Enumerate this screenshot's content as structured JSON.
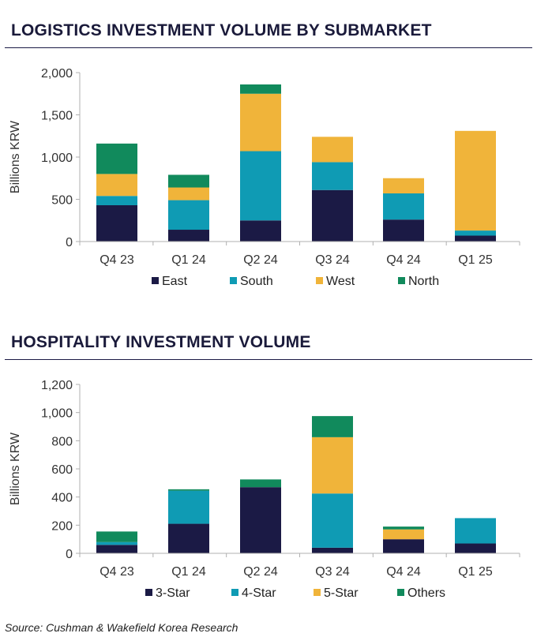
{
  "colors": {
    "title": "#1a1a3a",
    "rule": "#1b1a45",
    "axis": "#b0b0b0",
    "text": "#333333"
  },
  "chart_data": [
    {
      "type": "bar",
      "stacked": true,
      "title": "LOGISTICS INVESTMENT VOLUME BY SUBMARKET",
      "ylabel": "Billions KRW",
      "xlabel": "",
      "ylim": [
        0,
        2000
      ],
      "yticks": [
        "0",
        "500",
        "1,000",
        "1,500",
        "2,000"
      ],
      "grid": false,
      "legend_position": "bottom",
      "categories": [
        "Q4 23",
        "Q1 24",
        "Q2 24",
        "Q3 24",
        "Q4 24",
        "Q1 25"
      ],
      "series": [
        {
          "name": "East",
          "color": "#1b1a45",
          "values": [
            430,
            140,
            250,
            610,
            260,
            70
          ]
        },
        {
          "name": "South",
          "color": "#0f9bb4",
          "values": [
            110,
            350,
            820,
            330,
            310,
            60
          ]
        },
        {
          "name": "West",
          "color": "#f0b43a",
          "values": [
            260,
            150,
            680,
            300,
            180,
            1180
          ]
        },
        {
          "name": "North",
          "color": "#118a5c",
          "values": [
            360,
            150,
            110,
            0,
            0,
            0
          ]
        }
      ]
    },
    {
      "type": "bar",
      "stacked": true,
      "title": "HOSPITALITY INVESTMENT VOLUME",
      "ylabel": "Billions KRW",
      "xlabel": "",
      "ylim": [
        0,
        1200
      ],
      "yticks": [
        "0",
        "200",
        "400",
        "600",
        "800",
        "1,000",
        "1,200"
      ],
      "grid": false,
      "legend_position": "bottom",
      "categories": [
        "Q4 23",
        "Q1 24",
        "Q2 24",
        "Q3 24",
        "Q4 24",
        "Q1 25"
      ],
      "series": [
        {
          "name": "3-Star",
          "color": "#1b1a45",
          "values": [
            60,
            210,
            470,
            40,
            100,
            70
          ]
        },
        {
          "name": "4-Star",
          "color": "#0f9bb4",
          "values": [
            20,
            235,
            0,
            385,
            0,
            180
          ]
        },
        {
          "name": "5-Star",
          "color": "#f0b43a",
          "values": [
            0,
            0,
            0,
            400,
            70,
            0
          ]
        },
        {
          "name": "Others",
          "color": "#118a5c",
          "values": [
            75,
            10,
            55,
            150,
            20,
            0
          ]
        }
      ]
    }
  ],
  "source": "Source: Cushman & Wakefield Korea Research"
}
